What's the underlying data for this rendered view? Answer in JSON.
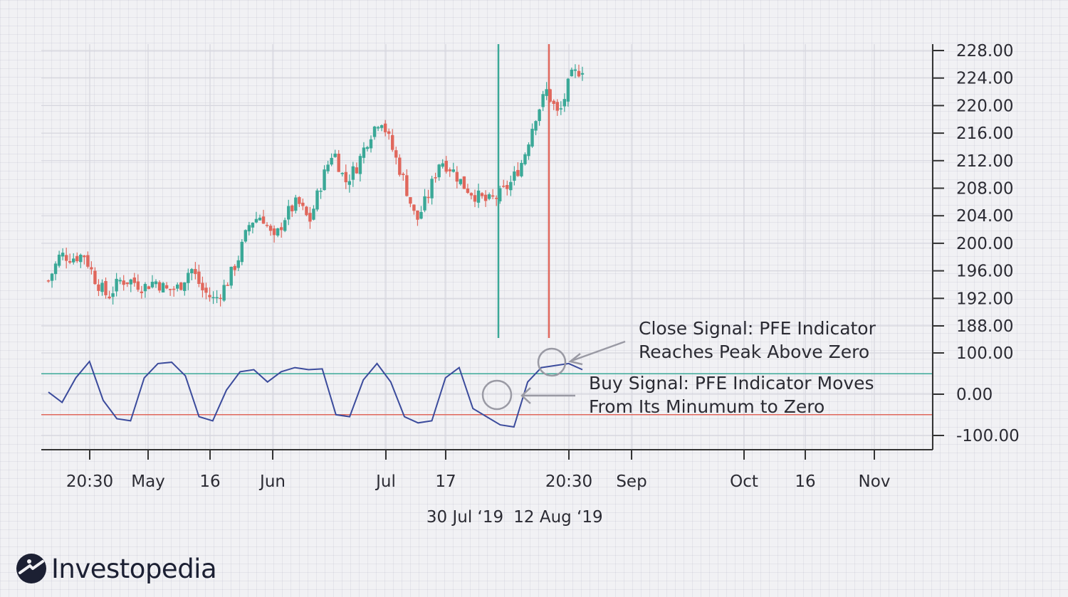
{
  "brand": {
    "name": "Investopedia"
  },
  "colors": {
    "up": "#3aa897",
    "down": "#e0675c",
    "indicator": "#3b4b9c",
    "axis": "#333",
    "grid": "#d6d6de",
    "annotation": "#9a9aa4"
  },
  "chart_data": {
    "type": "candlestick",
    "price_axis": {
      "ticks": [
        "228.00",
        "224.00",
        "220.00",
        "216.00",
        "212.00",
        "208.00",
        "204.00",
        "200.00",
        "196.00",
        "192.00",
        "188.00"
      ],
      "range": [
        186,
        228
      ]
    },
    "indicator_axis": {
      "ticks": [
        "100.00",
        "0.00",
        "-100.00"
      ],
      "levels": {
        "upper": 50,
        "lower": -50
      }
    },
    "x_labels": [
      "20:30",
      "May",
      "16",
      "Jun",
      "Jul",
      "17",
      "20:30",
      "Sep",
      "Oct",
      "16",
      "Nov"
    ],
    "date_marks": [
      "30 Jul ‘19",
      "12 Aug ‘19"
    ],
    "price_path": [
      193,
      197,
      196.5,
      197,
      193,
      190.5,
      193,
      193,
      192,
      193,
      191.5,
      192,
      195,
      191.5,
      190,
      192.5,
      196.5,
      202,
      203,
      199,
      203,
      205,
      202,
      208,
      213,
      208,
      210.5,
      215,
      218,
      213,
      208,
      202,
      206,
      211.5,
      210,
      207.5,
      206,
      205,
      206,
      208,
      211.5,
      218,
      222,
      218,
      224,
      225.5
    ],
    "indicator_path": [
      5,
      -20,
      40,
      80,
      -15,
      -60,
      -65,
      40,
      75,
      78,
      45,
      -55,
      -65,
      10,
      55,
      60,
      30,
      55,
      65,
      60,
      62,
      -50,
      -55,
      35,
      75,
      30,
      -55,
      -70,
      -65,
      40,
      65,
      -35,
      -55,
      -75,
      -80,
      30,
      65,
      70,
      75,
      60
    ],
    "annotations": [
      {
        "lines": [
          "Close Signal: PFE Indicator",
          "Reaches Peak Above Zero"
        ]
      },
      {
        "lines": [
          "Buy Signal: PFE Indicator Moves",
          "From Its Minumum to Zero"
        ]
      }
    ]
  }
}
